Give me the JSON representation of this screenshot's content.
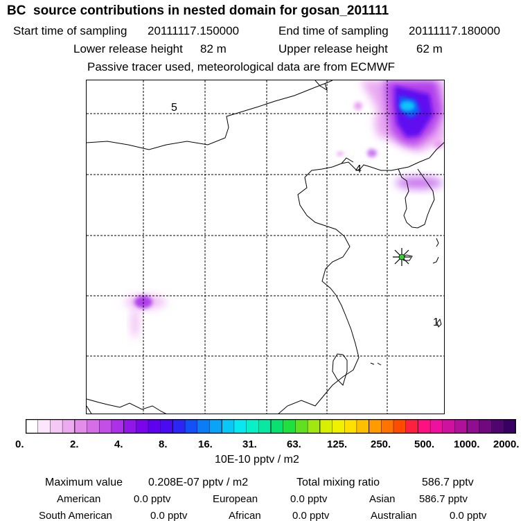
{
  "title": "BC  source contributions in nested domain for gosan_201111",
  "header": {
    "start_label": "Start time of sampling",
    "start_value": "20111117.150000",
    "end_label": "End time of sampling",
    "end_value": "20111117.180000",
    "lower_label": "Lower release height",
    "lower_value": "82 m",
    "upper_label": "Upper release height",
    "upper_value": "62 m",
    "note": "Passive tracer used, meteorological data are from ECMWF"
  },
  "map": {
    "grid_labels": [
      "5",
      "4",
      "1"
    ],
    "receptor_name": "gosan",
    "colors": {
      "land_outline": "#000000",
      "grid": "#000000",
      "receptor": "#2bd52b"
    }
  },
  "colorbar": {
    "ticks": [
      "0.",
      "2.",
      "4.",
      "8.",
      "16.",
      "31.",
      "63.",
      "125.",
      "250.",
      "500.",
      "1000.",
      "2000."
    ],
    "colors": [
      "#ffffff",
      "#fbe6fb",
      "#f5c8f5",
      "#eeaaf0",
      "#e48cec",
      "#d66ee8",
      "#c44fe8",
      "#ad2fe8",
      "#9316e8",
      "#7a05ec",
      "#6000f0",
      "#4a0af2",
      "#2d25f5",
      "#1450f8",
      "#0a7cf8",
      "#08a4f8",
      "#08c8f8",
      "#08e8f0",
      "#08f0c8",
      "#08e8a0",
      "#08e070",
      "#20e040",
      "#60e020",
      "#a0e810",
      "#d8f000",
      "#f0f000",
      "#ffe000",
      "#ffc000",
      "#ff9c00",
      "#ff7400",
      "#ff4c00",
      "#ff2040",
      "#ff1080",
      "#f010a0",
      "#d010a0",
      "#b0109c",
      "#900c90",
      "#700880",
      "#500470",
      "#380060"
    ],
    "unit": "10E-10 pptv / m2"
  },
  "stats": {
    "max_label": "Maximum value",
    "max_value": "0.208E-07 pptv / m2",
    "total_label": "Total mixing ratio",
    "total_value": "586.7 pptv",
    "regions": [
      {
        "name": "American",
        "value": "0.0 pptv"
      },
      {
        "name": "European",
        "value": "0.0 pptv"
      },
      {
        "name": "Asian",
        "value": "586.7 pptv"
      },
      {
        "name": "South American",
        "value": "0.0 pptv"
      },
      {
        "name": "African",
        "value": "0.0 pptv"
      },
      {
        "name": "Australian",
        "value": "0.0 pptv"
      }
    ]
  }
}
